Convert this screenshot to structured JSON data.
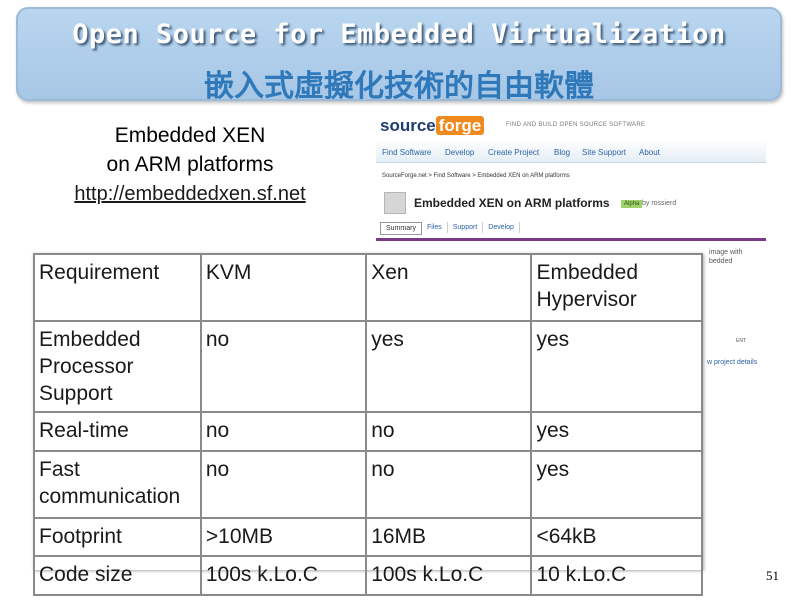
{
  "banner": {
    "title_en": "Open Source for Embedded Virtualization",
    "title_zh": "嵌入式虛擬化技術的自由軟體"
  },
  "caption": {
    "line1": "Embedded XEN",
    "line2": "on ARM platforms",
    "url": "http://embeddedxen.sf.net"
  },
  "sourceforge": {
    "logo_source": "source",
    "logo_forge": "forge",
    "tagline": "FIND AND BUILD OPEN SOURCE SOFTWARE",
    "nav": [
      "Find Software",
      "Develop",
      "Create Project",
      "Blog",
      "Site Support",
      "About"
    ],
    "breadcrumb": "SourceForge.net > Find Software > Embedded XEN on ARM platforms",
    "project_title": "Embedded XEN on ARM platforms",
    "status_badge": "Alpha",
    "by": "by rossierd",
    "tabs": [
      "Summary",
      "Files",
      "Support",
      "Develop"
    ],
    "side_text_1": "image with",
    "side_text_2": "bedded",
    "side_text_3": "ENT",
    "side_link": "w project details"
  },
  "table": {
    "headers": [
      "Requirement",
      "KVM",
      "Xen",
      "Embedded Hypervisor"
    ],
    "rows": [
      [
        "Embedded Processor Support",
        "no",
        "yes",
        "yes"
      ],
      [
        "Real-time",
        "no",
        "no",
        "yes"
      ],
      [
        "Fast communication",
        "no",
        "no",
        "yes"
      ],
      [
        "Footprint",
        ">10MB",
        "16MB",
        "<64kB"
      ],
      [
        "Code size",
        "100s k.Lo.C",
        "100s k.Lo.C",
        "10 k.Lo.C"
      ]
    ]
  },
  "page_number": "51"
}
